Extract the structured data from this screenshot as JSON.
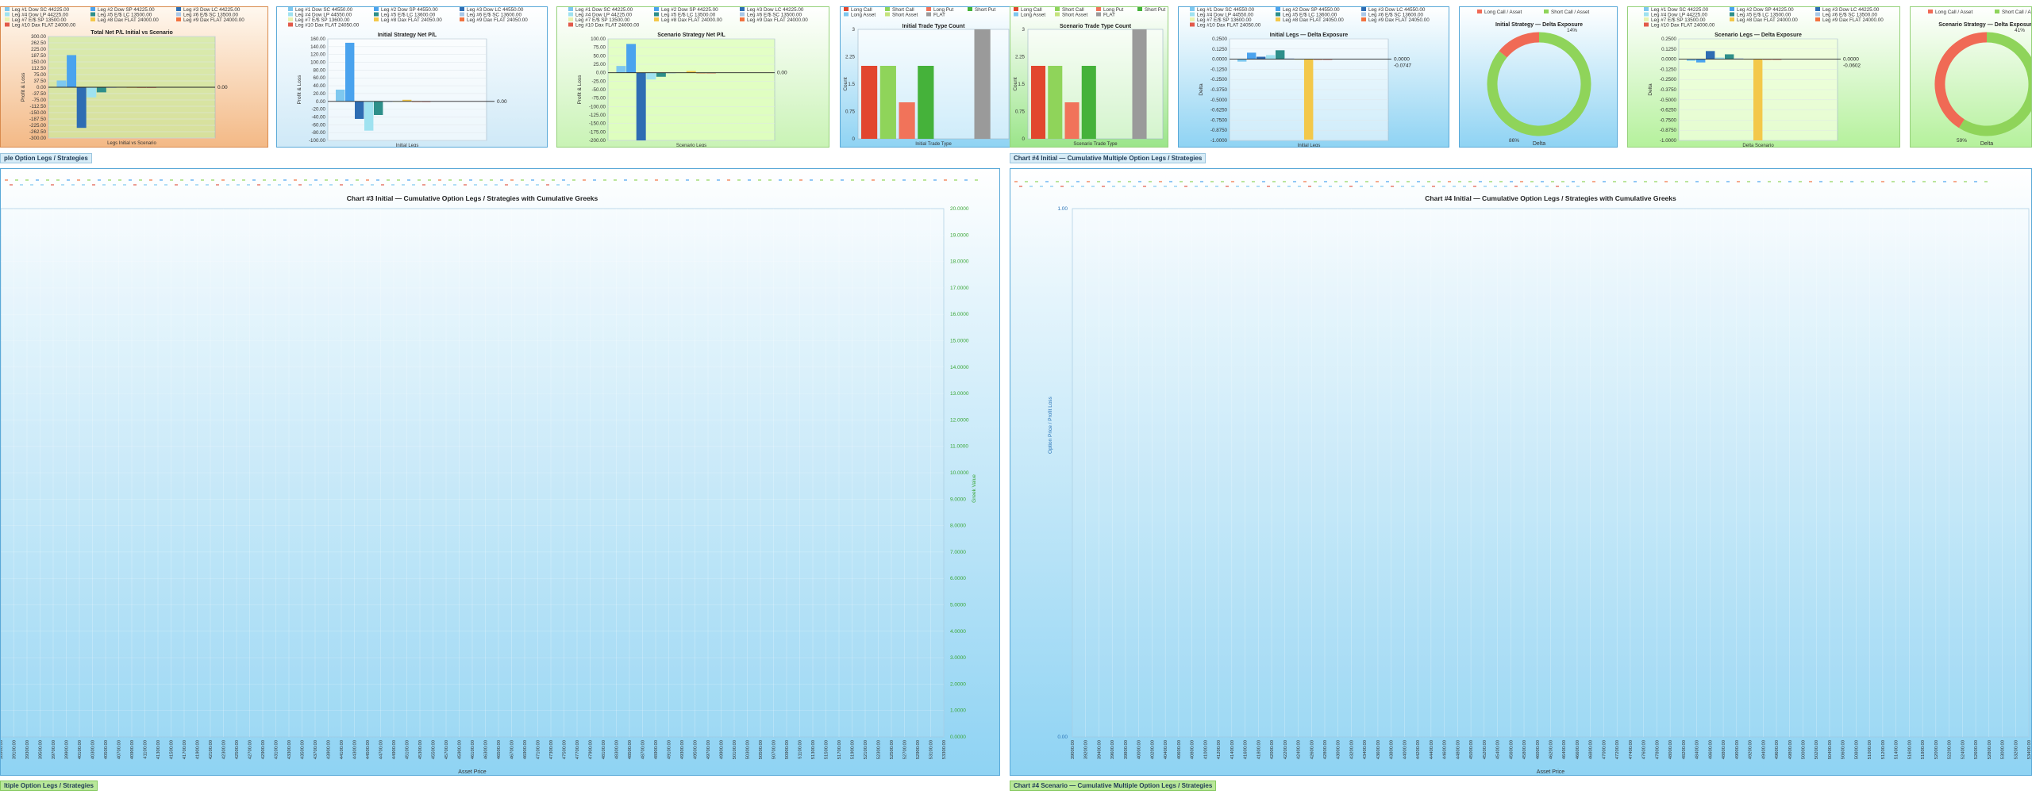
{
  "colors": {
    "leg": [
      "#7ec8ef",
      "#4aa3ee",
      "#2e6db3",
      "#9fe2f0",
      "#2e8f8a",
      "#aac8e8",
      "#e8f2b0",
      "#f3c84a",
      "#f2723f",
      "#e25a4a"
    ],
    "long_call": "#e2462e",
    "short_call": "#8fd45a",
    "long_put": "#f1735a",
    "short_put": "#45b23a",
    "long_asset": "#7fc7ee",
    "short_asset": "#c5e37e",
    "flat": "#9a9a9a",
    "donut_short": "#8fd45a",
    "donut_long": "#f06a55"
  },
  "legend_legs": [
    "Leg #1 Dow SC 44225.00",
    "Leg #2 Dow SP 44225.00",
    "Leg #3 Dow LC 44225.00",
    "Leg #4 Dow LP 44225.00",
    "Leg #5 E/$ LC 13500.00",
    "Leg #6 E/$ SC 13500.00",
    "Leg #7 E/$ SP 13500.00",
    "Leg #8 Dax FLAT 24000.00",
    "Leg #9 Dax FLAT 24000.00",
    "Leg #10 Dax FLAT 24000.00"
  ],
  "legend_legs_initial": [
    "Leg #1 Dow SC 44550.00",
    "Leg #2 Dow SP 44550.00",
    "Leg #3 Dow LC 44550.00",
    "Leg #4 Dow LP 44550.00",
    "Leg #5 E/$ LC 13600.00",
    "Leg #6 E/$ SC 13600.00",
    "Leg #7 E/$ SP 13600.00",
    "Leg #8 Dax FLAT 24050.00",
    "Leg #9 Dax FLAT 24050.00",
    "Leg #10 Dax FLAT 24050.00"
  ],
  "legend_types": [
    "Long Call",
    "Short Call",
    "Long Put",
    "Short Put",
    "Long Asset",
    "Short Asset",
    "FLAT"
  ],
  "legend_donut": [
    "Long Call / Asset",
    "Short Call / Asset"
  ],
  "tags": {
    "t1": "ple Option Legs / Strategies",
    "t2": "Chart #4 Initial — Cumulative Multiple Option Legs / Strategies",
    "t3": "ltiple Option Legs / Strategies",
    "t4": "Chart #4 Scenario — Cumulative Multiple Option Legs / Strategies"
  },
  "chart_data": [
    {
      "type": "bar",
      "title": "Total Net P/L Initial vs Scenario",
      "xlabel": "Legs Initial vs Scenario",
      "ylabel": "Profit & Loss",
      "ticks": [
        "300.00",
        "262.50",
        "225.00",
        "187.50",
        "150.00",
        "112.50",
        "75.00",
        "37.50",
        "0.00",
        "-37.50",
        "-75.00",
        "-112.50",
        "-150.00",
        "-187.50",
        "-225.00",
        "-262.50",
        "-300.00"
      ],
      "ylim": [
        -300,
        300
      ],
      "values": [
        40,
        190,
        -240,
        -60,
        -30,
        0,
        0,
        0,
        0,
        0
      ],
      "hline": "0.00"
    },
    {
      "type": "bar",
      "title": "Initial Strategy Net P/L",
      "xlabel": "Initial Legs",
      "ylabel": "Profit & Loss",
      "ticks": [
        "160.00",
        "140.00",
        "120.00",
        "100.00",
        "80.00",
        "60.00",
        "40.00",
        "20.00",
        "0.00",
        "-20.00",
        "-40.00",
        "-60.00",
        "-80.00",
        "-100.00"
      ],
      "ylim": [
        -100,
        160
      ],
      "values": [
        30,
        150,
        -45,
        -75,
        -35,
        0,
        0,
        4,
        0,
        0
      ],
      "hline": "0.00"
    },
    {
      "type": "bar",
      "title": "Scenario Strategy Net P/L",
      "xlabel": "Scenario Legs",
      "ylabel": "Profit & Loss",
      "ticks": [
        "100.00",
        "75.00",
        "50.00",
        "25.00",
        "0.00",
        "-25.00",
        "-50.00",
        "-75.00",
        "-100.00",
        "-125.00",
        "-150.00",
        "-175.00",
        "-200.00"
      ],
      "ylim": [
        -200,
        100
      ],
      "values": [
        20,
        85,
        -200,
        -20,
        -12,
        0,
        0,
        5,
        0,
        0
      ],
      "hline": "0.00"
    },
    {
      "type": "bar",
      "title": "Initial Trade Type Count",
      "xlabel": "Initial Trade Type",
      "ylabel": "Count",
      "ticks": [
        "3",
        "2.25",
        "1.5",
        "0.75",
        "0"
      ],
      "ylim": [
        0,
        3
      ],
      "categories": [
        "Long Call",
        "Short Call",
        "Long Put",
        "Short Put",
        "Long Asset",
        "Short Asset",
        "FLAT"
      ],
      "values": [
        2,
        2,
        1,
        2,
        0,
        0,
        3
      ]
    },
    {
      "type": "bar",
      "title": "Scenario Trade Type Count",
      "xlabel": "Scenario Trade Type",
      "ylabel": "Count",
      "ticks": [
        "3",
        "2.25",
        "1.5",
        "0.75",
        "0"
      ],
      "ylim": [
        0,
        3
      ],
      "categories": [
        "Long Call",
        "Short Call",
        "Long Put",
        "Short Put",
        "Long Asset",
        "Short Asset",
        "FLAT"
      ],
      "values": [
        2,
        2,
        1,
        2,
        0,
        0,
        3
      ]
    },
    {
      "type": "bar",
      "title": "Initial Legs — Delta Exposure",
      "xlabel": "Initial Legs",
      "ylabel": "Delta",
      "ticks": [
        "0.2500",
        "0.1250",
        "0.0000",
        "-0.1250",
        "-0.2500",
        "-0.3750",
        "-0.5000",
        "-0.6250",
        "-0.7500",
        "-0.8750",
        "-1.0000"
      ],
      "ylim": [
        -1,
        0.25
      ],
      "values": [
        -0.03,
        0.08,
        0.03,
        0.05,
        0.11,
        0.01,
        0,
        -0.99,
        0,
        0
      ],
      "hline": "0.0000",
      "hline2": "-0.0747"
    },
    {
      "type": "pie",
      "title": "Initial Strategy — Delta Exposure",
      "xlabel": "Delta",
      "slices": [
        {
          "label": "86%",
          "value": 86
        },
        {
          "label": "14%",
          "value": 14
        }
      ]
    },
    {
      "type": "bar",
      "title": "Scenario Legs — Delta Exposure",
      "xlabel": "Delta Scenario",
      "ylabel": "Delta",
      "ticks": [
        "0.2500",
        "0.1250",
        "0.0000",
        "-0.1250",
        "-0.2500",
        "-0.3750",
        "-0.5000",
        "-0.6250",
        "-0.7500",
        "-0.8750",
        "-1.0000"
      ],
      "ylim": [
        -1,
        0.25
      ],
      "values": [
        -0.02,
        -0.04,
        0.1,
        0.02,
        0.06,
        0.01,
        0,
        -1.0,
        0,
        0
      ],
      "hline": "0.0000",
      "hline2": "-0.0602"
    },
    {
      "type": "pie",
      "title": "Scenario Strategy — Delta Exposure",
      "xlabel": "Delta",
      "slices": [
        {
          "label": "59%",
          "value": 59
        },
        {
          "label": "41%",
          "value": 41
        }
      ]
    },
    {
      "type": "line",
      "title": "Chart #3 Initial — Cumulative Option Legs / Strategies with Cumulative Greeks",
      "xlabel": "Asset Price",
      "y2label": "Greek Value",
      "ticks": [
        "20.0000",
        "19.0000",
        "18.0000",
        "17.0000",
        "16.0000",
        "15.0000",
        "14.0000",
        "13.0000",
        "12.0000",
        "11.0000",
        "10.0000",
        "9.0000",
        "8.0000",
        "7.0000",
        "6.0000",
        "5.0000",
        "4.0000",
        "3.0000",
        "2.0000",
        "1.0000",
        "0.0000"
      ],
      "ylim": [
        0,
        20
      ],
      "xticks_start": 38900,
      "xticks_step": 200,
      "xticks_count": 72
    },
    {
      "type": "line",
      "title": "Chart #4 Initial — Cumulative Option Legs / Strategies with Cumulative Greeks",
      "xlabel": "Asset Price",
      "ylabel": "Option Price / Profit Loss",
      "ticks": [
        "1.00",
        "0.00"
      ],
      "ylim": [
        0,
        1
      ],
      "xticks_start": 39000,
      "xticks_step": 200,
      "xticks_count": 72
    }
  ]
}
